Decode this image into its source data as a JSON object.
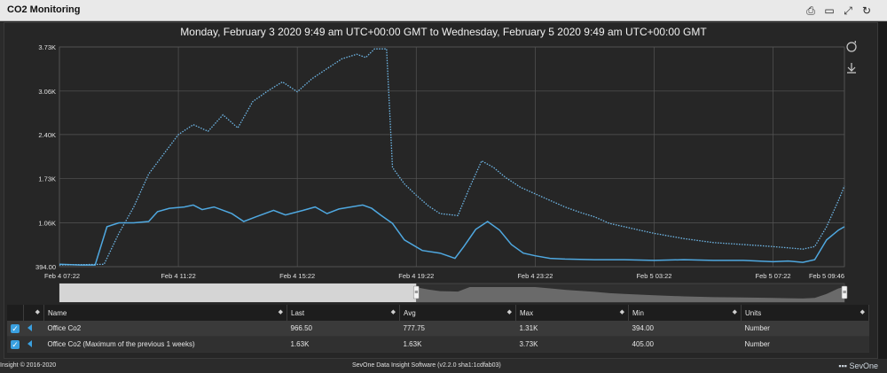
{
  "window": {
    "title": "CO2 Monitoring"
  },
  "icons": {
    "print": "print-icon",
    "maximize": "window-icon",
    "expand": "expand-arrows-icon",
    "refresh": "refresh-icon"
  },
  "chart_title": "Monday, February 3 2020 9:49 am UTC+00:00 GMT to Wednesday, February 5 2020 9:49 am UTC+00:00 GMT",
  "chart_data": {
    "type": "line",
    "x_range_hours": [
      0,
      50.4
    ],
    "ylim": [
      394,
      3730
    ],
    "yticks": [
      {
        "v": 394,
        "label": "394.00"
      },
      {
        "v": 1060,
        "label": "1.06K"
      },
      {
        "v": 1730,
        "label": "1.73K"
      },
      {
        "v": 2400,
        "label": "2.40K"
      },
      {
        "v": 3060,
        "label": "3.06K"
      },
      {
        "v": 3730,
        "label": "3.73K"
      }
    ],
    "xticks": [
      {
        "h": 0,
        "label": "Feb 4 07:22"
      },
      {
        "h": 4,
        "label": "Feb 4 11:22"
      },
      {
        "h": 8,
        "label": "Feb 4 15:22"
      },
      {
        "h": 12,
        "label": "Feb 4 19:22"
      },
      {
        "h": 16,
        "label": "Feb 4 23:22"
      },
      {
        "h": 20,
        "label": "Feb 5 03:22"
      },
      {
        "h": 24,
        "label": "Feb 5 07:22"
      },
      {
        "h": 26.4,
        "label": "Feb 5 09:46"
      }
    ],
    "series": [
      {
        "name": "Office Co2",
        "color": "#4fa8e0",
        "dash": false,
        "points": [
          [
            0,
            430
          ],
          [
            0.7,
            420
          ],
          [
            1.2,
            420
          ],
          [
            1.6,
            1000
          ],
          [
            2,
            1060
          ],
          [
            2.5,
            1060
          ],
          [
            3,
            1080
          ],
          [
            3.3,
            1230
          ],
          [
            3.7,
            1280
          ],
          [
            4.2,
            1300
          ],
          [
            4.5,
            1330
          ],
          [
            4.8,
            1260
          ],
          [
            5.2,
            1300
          ],
          [
            5.8,
            1200
          ],
          [
            6.2,
            1080
          ],
          [
            6.6,
            1150
          ],
          [
            7.2,
            1250
          ],
          [
            7.6,
            1180
          ],
          [
            8.2,
            1250
          ],
          [
            8.6,
            1300
          ],
          [
            9,
            1200
          ],
          [
            9.4,
            1270
          ],
          [
            9.8,
            1300
          ],
          [
            10.2,
            1330
          ],
          [
            10.5,
            1280
          ],
          [
            10.8,
            1180
          ],
          [
            11.2,
            1050
          ],
          [
            11.6,
            800
          ],
          [
            12.2,
            640
          ],
          [
            12.8,
            600
          ],
          [
            13.3,
            520
          ],
          [
            13.6,
            700
          ],
          [
            14,
            960
          ],
          [
            14.4,
            1080
          ],
          [
            14.8,
            950
          ],
          [
            15.2,
            730
          ],
          [
            15.6,
            600
          ],
          [
            16,
            560
          ],
          [
            16.5,
            520
          ],
          [
            17,
            510
          ],
          [
            18,
            500
          ],
          [
            19,
            500
          ],
          [
            20,
            490
          ],
          [
            21,
            500
          ],
          [
            22,
            490
          ],
          [
            23,
            490
          ],
          [
            24,
            470
          ],
          [
            24.5,
            480
          ],
          [
            25,
            460
          ],
          [
            25.4,
            500
          ],
          [
            25.8,
            800
          ],
          [
            26.2,
            950
          ],
          [
            26.4,
            1000
          ]
        ]
      },
      {
        "name": "Office Co2 (Maximum of the previous 1 weeks)",
        "color": "#6fb8e8",
        "dash": true,
        "points": [
          [
            0,
            420
          ],
          [
            1.5,
            430
          ],
          [
            2,
            900
          ],
          [
            2.5,
            1300
          ],
          [
            3,
            1800
          ],
          [
            3.5,
            2100
          ],
          [
            4,
            2400
          ],
          [
            4.5,
            2550
          ],
          [
            5,
            2450
          ],
          [
            5.5,
            2700
          ],
          [
            6,
            2500
          ],
          [
            6.5,
            2900
          ],
          [
            7,
            3060
          ],
          [
            7.5,
            3200
          ],
          [
            8,
            3050
          ],
          [
            8.5,
            3250
          ],
          [
            9,
            3400
          ],
          [
            9.5,
            3550
          ],
          [
            10,
            3620
          ],
          [
            10.3,
            3570
          ],
          [
            10.6,
            3700
          ],
          [
            11,
            3700
          ],
          [
            11.2,
            1900
          ],
          [
            11.6,
            1650
          ],
          [
            12,
            1480
          ],
          [
            12.4,
            1320
          ],
          [
            12.8,
            1200
          ],
          [
            13.4,
            1170
          ],
          [
            13.8,
            1600
          ],
          [
            14.2,
            2000
          ],
          [
            14.6,
            1900
          ],
          [
            15,
            1750
          ],
          [
            15.5,
            1600
          ],
          [
            16,
            1500
          ],
          [
            16.5,
            1400
          ],
          [
            17,
            1300
          ],
          [
            17.5,
            1220
          ],
          [
            18,
            1150
          ],
          [
            18.5,
            1050
          ],
          [
            19,
            1000
          ],
          [
            19.5,
            950
          ],
          [
            20,
            900
          ],
          [
            21,
            820
          ],
          [
            22,
            760
          ],
          [
            23,
            730
          ],
          [
            24,
            700
          ],
          [
            24.5,
            680
          ],
          [
            25,
            660
          ],
          [
            25.4,
            700
          ],
          [
            25.8,
            1000
          ],
          [
            26.2,
            1400
          ],
          [
            26.4,
            1620
          ]
        ]
      }
    ]
  },
  "nav_handles": [
    "≡",
    "≡"
  ],
  "table": {
    "headers": [
      "Name",
      "Last",
      "Avg",
      "Max",
      "Min",
      "Units"
    ],
    "rows": [
      {
        "name": "Office Co2",
        "last": "966.50",
        "avg": "777.75",
        "max": "1.31K",
        "min": "394.00",
        "units": "Number"
      },
      {
        "name": "Office Co2 (Maximum of the previous 1 weeks)",
        "last": "1.63K",
        "avg": "1.63K",
        "max": "3.73K",
        "min": "405.00",
        "units": "Number"
      }
    ]
  },
  "footer": {
    "left": "Insight © 2016-2020",
    "center": "SevOne Data Insight Software (v2.2.0 sha1:1cdfab03)",
    "right": "SevOne"
  }
}
